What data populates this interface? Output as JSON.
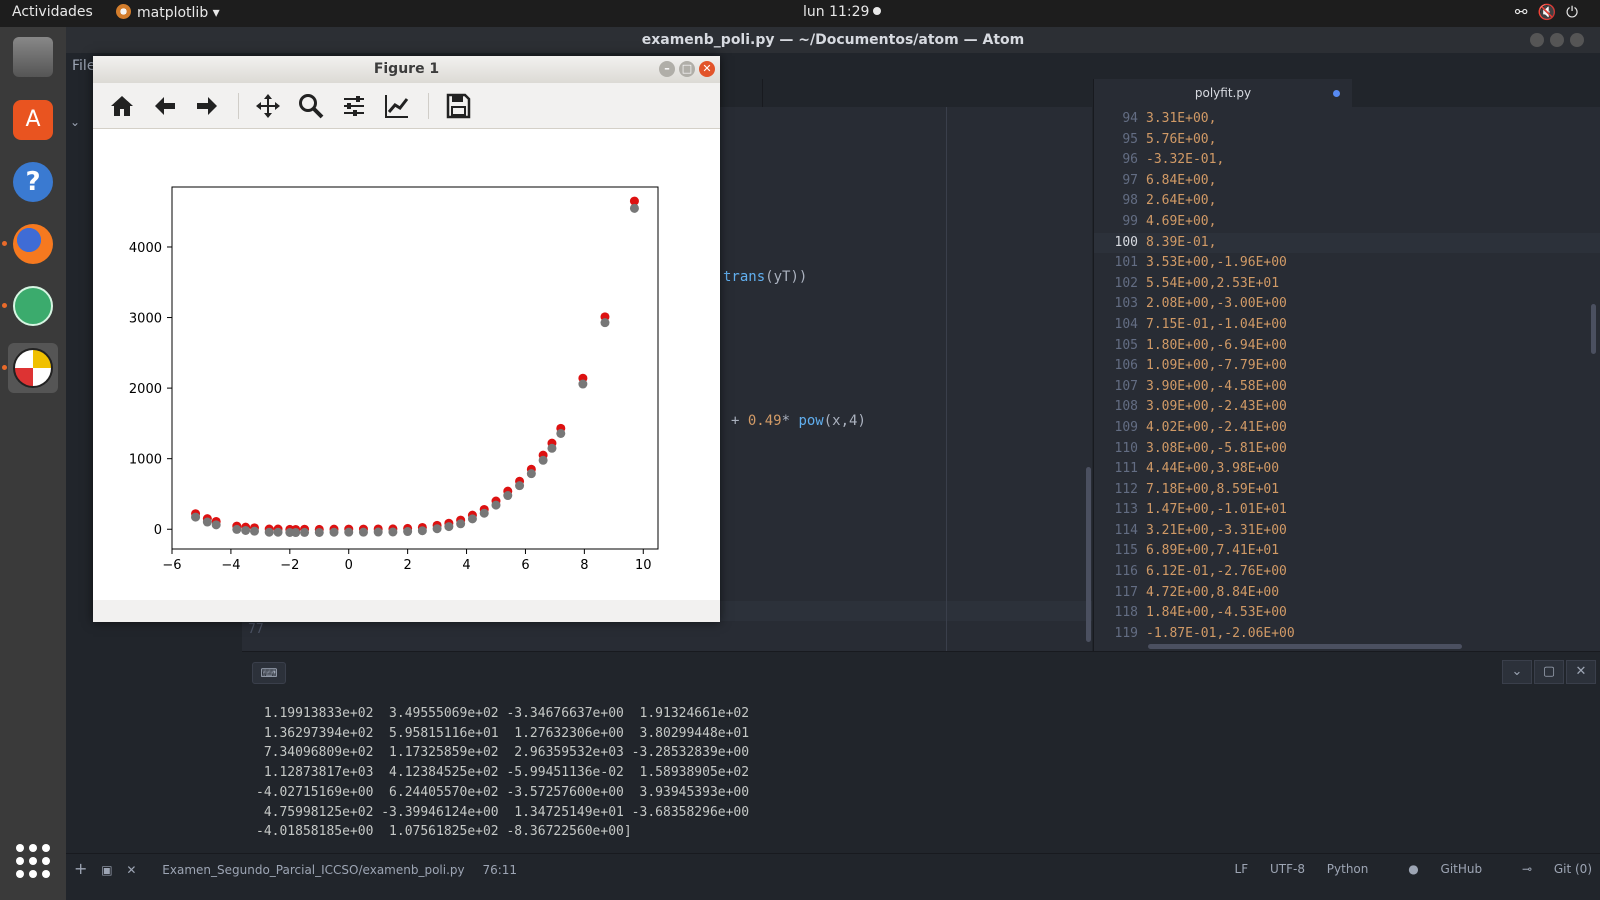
{
  "topbar": {
    "activities": "Actividades",
    "app_menu": "matplotlib ▾",
    "clock": "lun 11:29"
  },
  "atom": {
    "window_title": "examenb_poli.py — ~/Documentos/atom — Atom",
    "menu_first": "File",
    "right_tab": "polyfit.py",
    "fragments": {
      "trans_text": "trans",
      "trans_rest": "(yT))",
      "poly_prefix": "+ ",
      "poly_coef": "0.49",
      "poly_mid": "* ",
      "poly_fn": "pow",
      "poly_args": "(x,4)"
    },
    "left_line_number": "77",
    "code_lines": [
      {
        "n": "94",
        "t": "3.31E+00,"
      },
      {
        "n": "95",
        "t": "5.76E+00,"
      },
      {
        "n": "96",
        "t": "-3.32E-01,"
      },
      {
        "n": "97",
        "t": "6.84E+00,"
      },
      {
        "n": "98",
        "t": "2.64E+00,"
      },
      {
        "n": "99",
        "t": "4.69E+00,"
      },
      {
        "n": "100",
        "t": "8.39E-01,"
      },
      {
        "n": "101",
        "t": "3.53E+00,-1.96E+00"
      },
      {
        "n": "102",
        "t": "5.54E+00,2.53E+01"
      },
      {
        "n": "103",
        "t": "2.08E+00,-3.00E+00"
      },
      {
        "n": "104",
        "t": "7.15E-01,-1.04E+00"
      },
      {
        "n": "105",
        "t": "1.80E+00,-6.94E+00"
      },
      {
        "n": "106",
        "t": "1.09E+00,-7.79E+00"
      },
      {
        "n": "107",
        "t": "3.90E+00,-4.58E+00"
      },
      {
        "n": "108",
        "t": "3.09E+00,-2.43E+00"
      },
      {
        "n": "109",
        "t": "4.02E+00,-2.41E+00"
      },
      {
        "n": "110",
        "t": "3.08E+00,-5.81E+00"
      },
      {
        "n": "111",
        "t": "4.44E+00,3.98E+00"
      },
      {
        "n": "112",
        "t": "7.18E+00,8.59E+01"
      },
      {
        "n": "113",
        "t": "1.47E+00,-1.01E+01"
      },
      {
        "n": "114",
        "t": "3.21E+00,-3.31E+00"
      },
      {
        "n": "115",
        "t": "6.89E+00,7.41E+01"
      },
      {
        "n": "116",
        "t": "6.12E-01,-2.76E+00"
      },
      {
        "n": "117",
        "t": "4.72E+00,8.84E+00"
      },
      {
        "n": "118",
        "t": "1.84E+00,-4.53E+00"
      },
      {
        "n": "119",
        "t": "-1.87E-01,-2.06E+00"
      }
    ],
    "output_lines": [
      " 1.19913833e+02  3.49555069e+02 -3.34676637e+00  1.91324661e+02",
      " 1.36297394e+02  5.95815116e+01  1.27632306e+00  3.80299448e+01",
      " 7.34096809e+02  1.17325859e+02  2.96359532e+03 -3.28532839e+00",
      " 1.12873817e+03  4.12384525e+02 -5.99451136e-02  1.58938905e+02",
      "-4.02715169e+00  6.24405570e+02 -3.57257600e+00  3.93945393e+00",
      " 4.75998125e+02 -3.39946124e+00  1.34725149e+01 -3.68358296e+00",
      "-4.01858185e+00  1.07561825e+02 -8.36722560e+00]"
    ],
    "status": {
      "file": "Examen_Segundo_Parcial_ICCSO/examenb_poli.py",
      "cursor": "76:11",
      "eol": "LF",
      "encoding": "UTF-8",
      "grammar": "Python",
      "github": "GitHub",
      "git": "Git (0)"
    }
  },
  "figure": {
    "title": "Figure 1"
  },
  "chart_data": {
    "type": "scatter",
    "title": "",
    "xlabel": "",
    "ylabel": "",
    "xlim": [
      -6,
      10.5
    ],
    "ylim": [
      -280,
      4850
    ],
    "xticks": [
      -6,
      -4,
      -2,
      0,
      2,
      4,
      6,
      8,
      10
    ],
    "yticks": [
      0,
      1000,
      2000,
      3000,
      4000
    ],
    "xtick_labels": [
      "−6",
      "−4",
      "−2",
      "0",
      "2",
      "4",
      "6",
      "8",
      "10"
    ],
    "ytick_labels": [
      "0",
      "1000",
      "2000",
      "3000",
      "4000"
    ],
    "grid": false,
    "series": [
      {
        "color": "#dd1111",
        "points": [
          [
            -5.2,
            220
          ],
          [
            -4.8,
            150
          ],
          [
            -4.5,
            110
          ],
          [
            -3.8,
            45
          ],
          [
            -3.5,
            30
          ],
          [
            -3.2,
            20
          ],
          [
            -2.7,
            3
          ],
          [
            -2.4,
            3
          ],
          [
            -2,
            -2
          ],
          [
            -1.8,
            -3
          ],
          [
            -1.5,
            0
          ],
          [
            -1,
            -2
          ],
          [
            -0.5,
            1
          ],
          [
            0,
            2
          ],
          [
            0.5,
            2
          ],
          [
            1,
            4
          ],
          [
            1.5,
            5
          ],
          [
            2,
            12
          ],
          [
            2.5,
            25
          ],
          [
            3,
            55
          ],
          [
            3.4,
            85
          ],
          [
            3.8,
            130
          ],
          [
            4.2,
            200
          ],
          [
            4.6,
            280
          ],
          [
            5,
            400
          ],
          [
            5.4,
            540
          ],
          [
            5.8,
            680
          ],
          [
            6.2,
            850
          ],
          [
            6.6,
            1050
          ],
          [
            6.9,
            1220
          ],
          [
            7.2,
            1430
          ],
          [
            7.95,
            2140
          ],
          [
            8.7,
            3010
          ],
          [
            9.7,
            4650
          ]
        ]
      },
      {
        "color": "#777777",
        "points": [
          [
            -5.2,
            215
          ],
          [
            -4.8,
            145
          ],
          [
            -4.5,
            105
          ],
          [
            -3.8,
            40
          ],
          [
            -3.5,
            25
          ],
          [
            -3.2,
            15
          ],
          [
            -2.7,
            0
          ],
          [
            -2.4,
            0
          ],
          [
            -2,
            -3
          ],
          [
            -1.8,
            -4
          ],
          [
            -1.5,
            -2
          ],
          [
            -1,
            -3
          ],
          [
            -0.5,
            0
          ],
          [
            0,
            1
          ],
          [
            0.5,
            1
          ],
          [
            1,
            3
          ],
          [
            1.5,
            4
          ],
          [
            2,
            10
          ],
          [
            2.5,
            22
          ],
          [
            3,
            50
          ],
          [
            3.4,
            80
          ],
          [
            3.8,
            120
          ],
          [
            4.2,
            190
          ],
          [
            4.6,
            270
          ],
          [
            5,
            385
          ],
          [
            5.4,
            520
          ],
          [
            5.8,
            660
          ],
          [
            6.2,
            830
          ],
          [
            6.6,
            1020
          ],
          [
            6.9,
            1190
          ],
          [
            7.2,
            1400
          ],
          [
            7.95,
            2100
          ],
          [
            8.7,
            2970
          ],
          [
            9.7,
            4590
          ]
        ]
      }
    ]
  }
}
